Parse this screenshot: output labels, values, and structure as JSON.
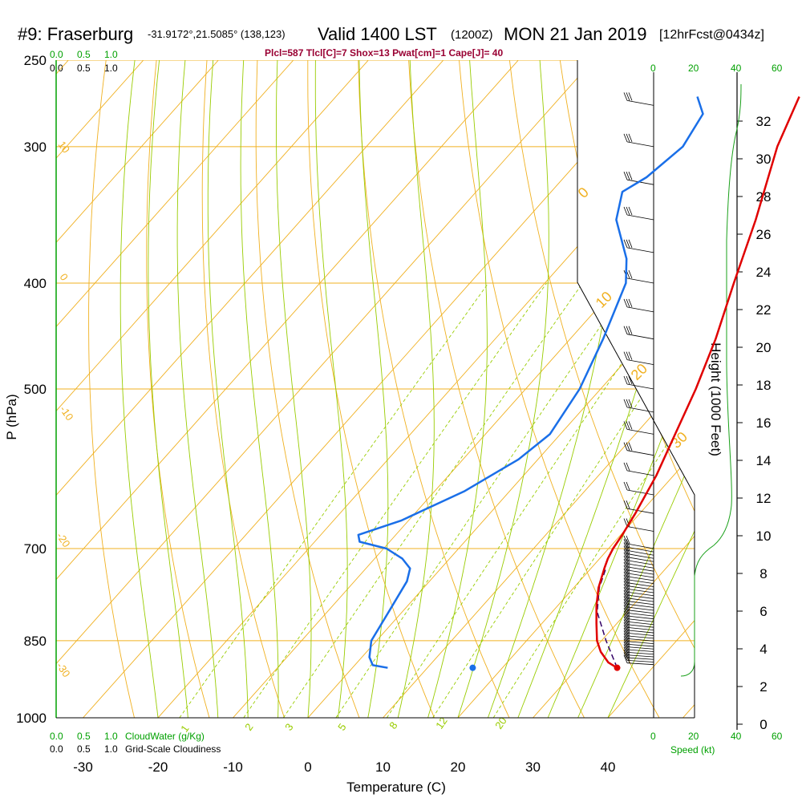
{
  "title": {
    "station": "#9: Fraserburg",
    "coords": "-31.9172°,21.5085° (138,123)",
    "valid": "Valid 1400 LST",
    "zulu": "(1200Z)",
    "date": "MON 21 Jan 2019",
    "forecast": "[12hrFcst@0434z]"
  },
  "indices": "Plcl=587 Tlcl[C]=7 Shox=13 Pwat[cm]=1 Cape[J]= 40",
  "colors": {
    "temperature": "#e00000",
    "dewpoint": "#1a6fe8",
    "parcel": "#330066",
    "isotherm": "#f0b020",
    "isobar": "#f0b020",
    "dry_adiabat": "#f0b020",
    "moist_adiabat": "#99cc00",
    "mixing_ratio": "#99cc00",
    "cloud": "#00a000"
  },
  "cloud_scale": {
    "top_green": [
      "0.0",
      "0.5",
      "1.0"
    ],
    "top_black": [
      "0.0",
      "0.5",
      "1.0"
    ],
    "bottom_green": [
      "0.0",
      "0.5",
      "1.0"
    ],
    "bottom_black": [
      "0.0",
      "0.5",
      "1.0"
    ],
    "cloudwater_label": "CloudWater (g/Kg)",
    "cloudiness_label": "Grid-Scale Cloudiness"
  },
  "speed_scale": {
    "top_black": [
      "0",
      "40"
    ],
    "top_green": [
      "20",
      "60"
    ],
    "bottom_black": [
      "0",
      "40"
    ],
    "bottom_green": [
      "20",
      "60"
    ],
    "label": "Speed (kt)"
  },
  "chart_data": {
    "type": "skew-t",
    "xlabel": "Temperature (C)",
    "ylabel": "P (hPa)",
    "y2label": "Height (1000 Feet)",
    "pressure_ticks": [
      "250",
      "300",
      "400",
      "500",
      "700",
      "850",
      "1000"
    ],
    "temperature_ticks": [
      "-30",
      "-20",
      "-10",
      "0",
      "10",
      "20",
      "30",
      "40"
    ],
    "height_ticks": [
      "0",
      "2",
      "4",
      "6",
      "8",
      "10",
      "12",
      "14",
      "16",
      "18",
      "20",
      "22",
      "24",
      "26",
      "28",
      "30",
      "32"
    ],
    "xlim": [
      -35,
      45
    ],
    "ylim": [
      1000,
      250
    ],
    "grid": true,
    "temperature_profile": [
      {
        "p": 900,
        "t": 35.3
      },
      {
        "p": 890,
        "t": 33.5
      },
      {
        "p": 870,
        "t": 31.2
      },
      {
        "p": 850,
        "t": 29.4
      },
      {
        "p": 820,
        "t": 27.3
      },
      {
        "p": 790,
        "t": 25.2
      },
      {
        "p": 760,
        "t": 23.3
      },
      {
        "p": 730,
        "t": 21.8
      },
      {
        "p": 715,
        "t": 21.1
      },
      {
        "p": 700,
        "t": 20.6
      },
      {
        "p": 680,
        "t": 20.2
      },
      {
        "p": 650,
        "t": 19.4
      },
      {
        "p": 600,
        "t": 17.7
      },
      {
        "p": 550,
        "t": 15.3
      },
      {
        "p": 500,
        "t": 12.7
      },
      {
        "p": 450,
        "t": 9.4
      },
      {
        "p": 400,
        "t": 5.2
      },
      {
        "p": 350,
        "t": 0.6
      },
      {
        "p": 300,
        "t": -5.2
      },
      {
        "p": 270,
        "t": -8.2
      }
    ],
    "dewpoint_profile": [
      {
        "p": 900,
        "t": 4.7
      },
      {
        "p": 895,
        "t": 2.4
      },
      {
        "p": 880,
        "t": 1.0
      },
      {
        "p": 850,
        "t": -0.7
      },
      {
        "p": 800,
        "t": -1.8
      },
      {
        "p": 750,
        "t": -3.0
      },
      {
        "p": 730,
        "t": -4.1
      },
      {
        "p": 715,
        "t": -6.3
      },
      {
        "p": 700,
        "t": -9.6
      },
      {
        "p": 690,
        "t": -14.0
      },
      {
        "p": 680,
        "t": -15.0
      },
      {
        "p": 660,
        "t": -11.0
      },
      {
        "p": 620,
        "t": -6.0
      },
      {
        "p": 580,
        "t": -2.6
      },
      {
        "p": 550,
        "t": -1.4
      },
      {
        "p": 500,
        "t": -2.8
      },
      {
        "p": 450,
        "t": -5.6
      },
      {
        "p": 400,
        "t": -9.2
      },
      {
        "p": 380,
        "t": -12.0
      },
      {
        "p": 350,
        "t": -18.0
      },
      {
        "p": 330,
        "t": -20.5
      },
      {
        "p": 320,
        "t": -19.0
      },
      {
        "p": 300,
        "t": -17.8
      },
      {
        "p": 280,
        "t": -19.0
      },
      {
        "p": 270,
        "t": -21.8
      }
    ],
    "parcel_profile": [
      {
        "p": 900,
        "t": 35.3
      },
      {
        "p": 850,
        "t": 30.6
      },
      {
        "p": 800,
        "t": 26.0
      },
      {
        "p": 760,
        "t": 23.4
      },
      {
        "p": 730,
        "t": 22.0
      }
    ],
    "surface_point_temperature": {
      "p": 900,
      "t": 35.3
    },
    "surface_point_dewpoint": {
      "p": 900,
      "t": 4.7
    },
    "isotherm_labels": [
      "0",
      "10",
      "20",
      "30"
    ],
    "dry_adiabat_labels": [
      "10",
      "0",
      "-10",
      "-20",
      "-30"
    ],
    "mixing_ratio_labels": [
      "1",
      "2",
      "3",
      "5",
      "8",
      "12",
      "20"
    ]
  }
}
